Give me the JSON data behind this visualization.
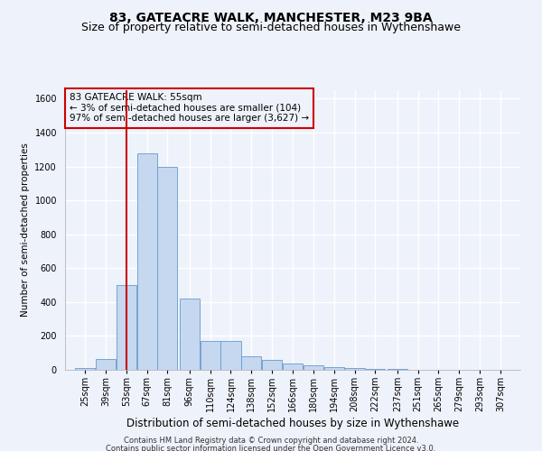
{
  "title1": "83, GATEACRE WALK, MANCHESTER, M23 9BA",
  "title2": "Size of property relative to semi-detached houses in Wythenshawe",
  "xlabel": "Distribution of semi-detached houses by size in Wythenshawe",
  "ylabel": "Number of semi-detached properties",
  "footnote1": "Contains HM Land Registry data © Crown copyright and database right 2024.",
  "footnote2": "Contains public sector information licensed under the Open Government Licence v3.0.",
  "annotation_line1": "83 GATEACRE WALK: 55sqm",
  "annotation_line2": "← 3% of semi-detached houses are smaller (104)",
  "annotation_line3": "97% of semi-detached houses are larger (3,627) →",
  "bar_labels": [
    "25sqm",
    "39sqm",
    "53sqm",
    "67sqm",
    "81sqm",
    "96sqm",
    "110sqm",
    "124sqm",
    "138sqm",
    "152sqm",
    "166sqm",
    "180sqm",
    "194sqm",
    "208sqm",
    "222sqm",
    "237sqm",
    "251sqm",
    "265sqm",
    "279sqm",
    "293sqm",
    "307sqm"
  ],
  "bar_values": [
    8,
    65,
    500,
    1280,
    1195,
    420,
    170,
    170,
    80,
    60,
    35,
    25,
    15,
    8,
    5,
    3,
    2,
    1,
    1,
    0,
    0
  ],
  "bar_centers": [
    25,
    39,
    53,
    67,
    81,
    96,
    110,
    124,
    138,
    152,
    166,
    180,
    194,
    208,
    222,
    237,
    251,
    265,
    279,
    293,
    307
  ],
  "bar_width": 13.5,
  "bar_color": "#c5d8f0",
  "bar_edge_color": "#6699cc",
  "vline_x": 53,
  "vline_color": "#cc0000",
  "ylim": [
    0,
    1650
  ],
  "yticks": [
    0,
    200,
    400,
    600,
    800,
    1000,
    1200,
    1400,
    1600
  ],
  "background_color": "#eef2fa",
  "grid_color": "#ffffff",
  "annotation_box_color": "#cc0000",
  "title1_fontsize": 10,
  "title2_fontsize": 9,
  "xlabel_fontsize": 8.5,
  "ylabel_fontsize": 7.5,
  "tick_fontsize": 7,
  "annotation_fontsize": 7.5,
  "footnote_fontsize": 6
}
